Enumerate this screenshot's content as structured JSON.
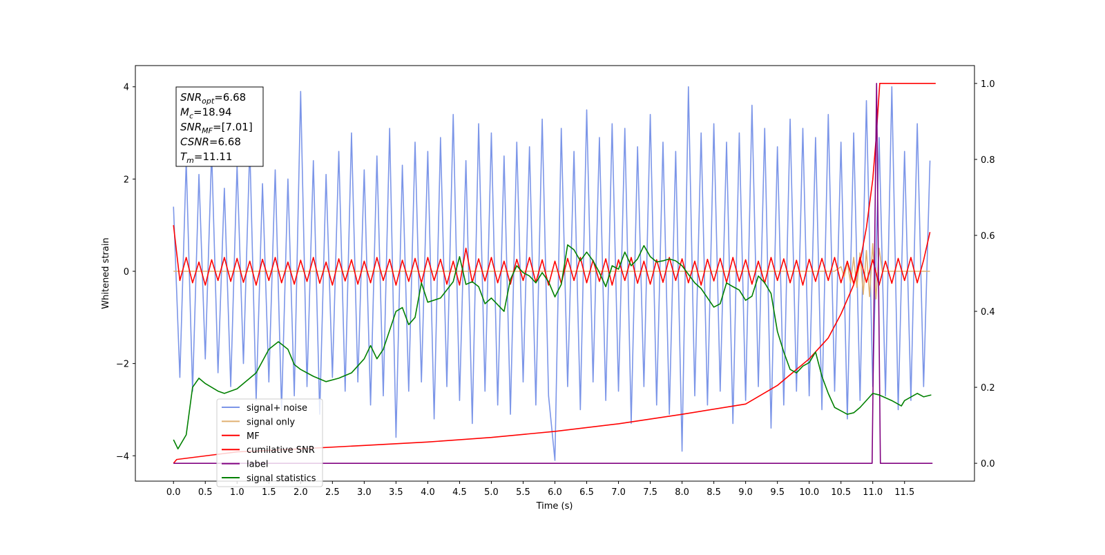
{
  "chart_data": {
    "type": "line",
    "xlabel": "Time (s)",
    "ylabel": "Whitened strain",
    "xlim": [
      -0.6,
      12.6
    ],
    "ylim": [
      -4.55,
      4.46
    ],
    "y2lim": [
      -0.047,
      1.047
    ],
    "xticks": [
      {
        "value": 0,
        "label": "0.0"
      },
      0.5,
      {
        "value": 1,
        "label": "1.0"
      },
      1.5,
      {
        "value": 2,
        "label": "2.0"
      },
      2.5,
      {
        "value": 3,
        "label": "3.0"
      },
      3.5,
      {
        "value": 4,
        "label": "4.0"
      },
      4.5,
      {
        "value": 5,
        "label": "5.0"
      },
      5.5,
      {
        "value": 6,
        "label": "6.0"
      },
      6.5,
      {
        "value": 7,
        "label": "7.0"
      },
      7.5,
      {
        "value": 8,
        "label": "8.0"
      },
      8.5,
      {
        "value": 9,
        "label": "9.0"
      },
      9.5,
      {
        "value": 10,
        "label": "10.0"
      },
      10.5,
      {
        "value": 11,
        "label": "11.0"
      },
      11.5
    ],
    "yticks": [
      {
        "value": -4,
        "label": "−4"
      },
      {
        "value": -2,
        "label": "−2"
      },
      0,
      2,
      4
    ],
    "y2ticks": [
      {
        "value": 0,
        "label": "0.0"
      },
      0.2,
      0.4,
      0.6,
      0.8,
      {
        "value": 1,
        "label": "1.0"
      }
    ],
    "legend": "lower left",
    "annotations": [
      {
        "symbol": "SNR",
        "sub": "opt",
        "text": "=6.68"
      },
      {
        "symbol": "M",
        "sub": "c",
        "text": "=18.94"
      },
      {
        "symbol": "SNR",
        "sub": "MF",
        "text": "=[7.01]"
      },
      {
        "symbol": "CSNR",
        "text": "=6.68"
      },
      {
        "symbol": "T",
        "sub": "m",
        "text": "=11.11"
      }
    ],
    "series": [
      {
        "name": "signal+ noise",
        "color": "#7b95e8",
        "x": [
          0,
          0.1,
          0.2,
          0.3,
          0.4,
          0.5,
          0.6,
          0.7,
          0.8,
          0.9,
          1,
          1.1,
          1.2,
          1.3,
          1.4,
          1.5,
          1.6,
          1.7,
          1.8,
          1.9,
          2,
          2.1,
          2.2,
          2.3,
          2.4,
          2.5,
          2.6,
          2.7,
          2.8,
          2.9,
          3,
          3.1,
          3.2,
          3.3,
          3.4,
          3.5,
          3.6,
          3.7,
          3.8,
          3.9,
          4,
          4.1,
          4.2,
          4.3,
          4.4,
          4.5,
          4.6,
          4.7,
          4.8,
          4.9,
          5,
          5.1,
          5.2,
          5.3,
          5.4,
          5.5,
          5.6,
          5.7,
          5.8,
          5.9,
          6,
          6.1,
          6.2,
          6.3,
          6.4,
          6.5,
          6.6,
          6.7,
          6.8,
          6.9,
          7,
          7.1,
          7.2,
          7.3,
          7.4,
          7.5,
          7.6,
          7.7,
          7.8,
          7.9,
          8,
          8.1,
          8.2,
          8.3,
          8.4,
          8.5,
          8.6,
          8.7,
          8.8,
          8.9,
          9,
          9.1,
          9.2,
          9.3,
          9.4,
          9.5,
          9.6,
          9.7,
          9.8,
          9.9,
          10,
          10.1,
          10.2,
          10.3,
          10.4,
          10.5,
          10.6,
          10.7,
          10.8,
          10.9,
          11,
          11.1,
          11.2,
          11.3,
          11.4,
          11.5,
          11.6,
          11.7,
          11.8,
          11.9
        ],
        "values": [
          1.4,
          -2.3,
          2.4,
          -2.6,
          2.1,
          -1.9,
          2.6,
          -2.2,
          1.8,
          -2.5,
          2.3,
          -2.0,
          2.7,
          -2.8,
          1.9,
          -2.4,
          2.2,
          -3.0,
          2.0,
          -2.7,
          3.9,
          -2.5,
          2.4,
          -3.1,
          2.1,
          -2.3,
          2.6,
          -2.6,
          3.0,
          -2.4,
          2.2,
          -2.9,
          2.5,
          -2.7,
          3.1,
          -3.6,
          2.3,
          -2.6,
          2.8,
          -2.4,
          2.6,
          -3.2,
          2.9,
          -2.5,
          3.4,
          -2.8,
          2.4,
          -3.3,
          3.2,
          -2.6,
          3.0,
          -2.9,
          2.5,
          -3.1,
          2.8,
          -2.4,
          2.7,
          -2.9,
          3.3,
          -2.7,
          -4.1,
          3.1,
          -2.5,
          2.6,
          -3.0,
          3.5,
          -2.4,
          2.9,
          -2.8,
          3.2,
          -2.6,
          3.1,
          -3.3,
          2.7,
          -2.5,
          3.4,
          -2.9,
          2.8,
          -3.1,
          2.6,
          -3.9,
          4.0,
          -2.7,
          3.0,
          -2.9,
          3.2,
          -2.6,
          2.8,
          -3.3,
          3.0,
          -2.8,
          3.6,
          -2.5,
          3.1,
          -3.4,
          2.7,
          -2.9,
          3.3,
          -2.6,
          3.1,
          -2.7,
          2.9,
          -3.0,
          3.4,
          -2.6,
          2.8,
          -3.2,
          3.0,
          -2.8,
          3.7,
          -2.5,
          2.9,
          -2.7,
          4.0,
          -3.0,
          2.6,
          -2.8,
          3.2,
          -2.5,
          2.4
        ]
      },
      {
        "name": "signal only",
        "color": "#e0b070",
        "x": [
          0,
          2,
          4,
          6,
          8,
          10,
          10.4,
          10.5,
          10.55,
          10.6,
          10.65,
          10.7,
          10.75,
          10.8,
          10.85,
          10.9,
          10.95,
          11,
          11.05,
          11.1,
          11.15,
          11.5,
          11.9
        ],
        "values": [
          0,
          0,
          0,
          0,
          0,
          0,
          0,
          0.1,
          -0.12,
          0.2,
          -0.25,
          0.3,
          -0.35,
          0.4,
          -0.5,
          0.45,
          -0.55,
          0.6,
          -0.6,
          0.5,
          0,
          0,
          0
        ]
      },
      {
        "name": "MF",
        "color": "#ff0000",
        "x": [
          0,
          0.1,
          0.2,
          0.3,
          0.4,
          0.5,
          0.6,
          0.7,
          0.8,
          0.9,
          1,
          1.1,
          1.2,
          1.3,
          1.4,
          1.5,
          1.6,
          1.7,
          1.8,
          1.9,
          2,
          2.1,
          2.2,
          2.3,
          2.4,
          2.5,
          2.6,
          2.7,
          2.8,
          2.9,
          3,
          3.1,
          3.2,
          3.3,
          3.4,
          3.5,
          3.6,
          3.7,
          3.8,
          3.9,
          4,
          4.1,
          4.2,
          4.3,
          4.4,
          4.5,
          4.6,
          4.7,
          4.8,
          4.9,
          5,
          5.1,
          5.2,
          5.3,
          5.4,
          5.5,
          5.6,
          5.7,
          5.8,
          5.9,
          6,
          6.1,
          6.2,
          6.3,
          6.4,
          6.5,
          6.6,
          6.7,
          6.8,
          6.9,
          7,
          7.1,
          7.2,
          7.3,
          7.4,
          7.5,
          7.6,
          7.7,
          7.8,
          7.9,
          8,
          8.1,
          8.2,
          8.3,
          8.4,
          8.5,
          8.6,
          8.7,
          8.8,
          8.9,
          9,
          9.1,
          9.2,
          9.3,
          9.4,
          9.5,
          9.6,
          9.7,
          9.8,
          9.9,
          10,
          10.1,
          10.2,
          10.3,
          10.4,
          10.5,
          10.6,
          10.7,
          10.8,
          10.9,
          11,
          11.1,
          11.2,
          11.3,
          11.4,
          11.5,
          11.6,
          11.7,
          11.8,
          11.9
        ],
        "values": [
          1.0,
          -0.2,
          0.3,
          -0.25,
          0.2,
          -0.3,
          0.25,
          -0.2,
          0.3,
          -0.22,
          0.28,
          -0.24,
          0.22,
          -0.3,
          0.26,
          -0.2,
          0.3,
          -0.25,
          0.2,
          -0.28,
          0.24,
          -0.22,
          0.3,
          -0.26,
          0.2,
          -0.3,
          0.27,
          -0.21,
          0.25,
          -0.28,
          0.22,
          -0.25,
          0.3,
          -0.2,
          0.26,
          -0.3,
          0.24,
          -0.22,
          0.28,
          -0.25,
          0.3,
          -0.2,
          0.26,
          -0.28,
          0.22,
          -0.3,
          0.5,
          -0.24,
          0.27,
          -0.21,
          0.3,
          -0.25,
          0.22,
          -0.28,
          0.26,
          -0.2,
          0.3,
          -0.24,
          0.25,
          -0.3,
          0.22,
          -0.26,
          0.28,
          -0.2,
          0.3,
          -0.25,
          0.24,
          -0.22,
          0.27,
          -0.3,
          0.25,
          -0.2,
          0.3,
          -0.26,
          0.22,
          -0.28,
          0.25,
          -0.24,
          0.3,
          -0.2,
          0.27,
          -0.25,
          0.22,
          -0.3,
          0.26,
          -0.21,
          0.28,
          -0.24,
          0.3,
          -0.22,
          0.25,
          -0.28,
          0.22,
          -0.26,
          0.3,
          -0.2,
          0.27,
          -0.25,
          0.24,
          -0.3,
          0.26,
          -0.22,
          0.28,
          -0.2,
          0.3,
          -0.25,
          0.22,
          -0.27,
          0.3,
          -0.24,
          0.25,
          -0.3,
          0.22,
          -0.26,
          0.28,
          -0.2,
          0.3,
          -0.25,
          0.24,
          0.85
        ]
      },
      {
        "name": "cumilative SNR",
        "color": "#ff0000",
        "axis": "y2",
        "x": [
          0,
          0.05,
          1,
          2,
          3,
          4,
          5,
          6,
          7,
          8,
          9,
          9.5,
          10,
          10.3,
          10.5,
          10.7,
          10.8,
          10.9,
          11,
          11.05,
          11.11,
          11.5,
          11.99
        ],
        "values": [
          0,
          0.01,
          0.03,
          0.038,
          0.047,
          0.056,
          0.068,
          0.084,
          0.104,
          0.129,
          0.156,
          0.205,
          0.275,
          0.33,
          0.393,
          0.47,
          0.53,
          0.62,
          0.747,
          0.85,
          1.0,
          1.0,
          1.0
        ]
      },
      {
        "name": "label",
        "color": "#800080",
        "axis": "y2",
        "x": [
          0,
          10.99,
          11.06,
          11.12,
          11.94
        ],
        "values": [
          0,
          0,
          1,
          0,
          0
        ]
      },
      {
        "name": "signal statistics",
        "color": "#008000",
        "axis": "y2",
        "x": [
          0,
          0.07,
          0.2,
          0.3,
          0.4,
          0.5,
          0.7,
          0.8,
          1.0,
          1.2,
          1.3,
          1.5,
          1.65,
          1.8,
          1.9,
          2.0,
          2.2,
          2.4,
          2.6,
          2.8,
          3.0,
          3.1,
          3.2,
          3.3,
          3.5,
          3.6,
          3.7,
          3.8,
          3.9,
          4.0,
          4.2,
          4.4,
          4.5,
          4.6,
          4.7,
          4.8,
          4.9,
          5.0,
          5.2,
          5.3,
          5.4,
          5.5,
          5.6,
          5.7,
          5.8,
          5.9,
          6.0,
          6.1,
          6.2,
          6.3,
          6.4,
          6.5,
          6.6,
          6.7,
          6.8,
          6.9,
          7.0,
          7.1,
          7.2,
          7.3,
          7.4,
          7.5,
          7.6,
          7.7,
          7.8,
          7.9,
          8.0,
          8.2,
          8.3,
          8.5,
          8.6,
          8.7,
          8.8,
          8.9,
          9.0,
          9.1,
          9.2,
          9.3,
          9.4,
          9.5,
          9.6,
          9.7,
          9.8,
          9.9,
          10.0,
          10.1,
          10.2,
          10.3,
          10.4,
          10.5,
          10.6,
          10.7,
          10.8,
          11.0,
          11.1,
          11.3,
          11.45,
          11.5,
          11.7,
          11.8,
          11.92
        ],
        "values": [
          0.062,
          0.038,
          0.075,
          0.2,
          0.224,
          0.21,
          0.19,
          0.184,
          0.196,
          0.224,
          0.238,
          0.3,
          0.32,
          0.3,
          0.26,
          0.247,
          0.229,
          0.215,
          0.224,
          0.238,
          0.275,
          0.31,
          0.275,
          0.3,
          0.4,
          0.41,
          0.365,
          0.384,
          0.475,
          0.424,
          0.435,
          0.478,
          0.544,
          0.471,
          0.478,
          0.465,
          0.42,
          0.435,
          0.4,
          0.484,
          0.52,
          0.502,
          0.493,
          0.475,
          0.502,
          0.478,
          0.438,
          0.471,
          0.575,
          0.562,
          0.533,
          0.556,
          0.533,
          0.502,
          0.465,
          0.52,
          0.511,
          0.556,
          0.52,
          0.538,
          0.573,
          0.544,
          0.53,
          0.533,
          0.538,
          0.533,
          0.52,
          0.475,
          0.46,
          0.411,
          0.42,
          0.475,
          0.465,
          0.456,
          0.429,
          0.44,
          0.493,
          0.475,
          0.447,
          0.347,
          0.293,
          0.247,
          0.238,
          0.256,
          0.265,
          0.293,
          0.229,
          0.184,
          0.147,
          0.138,
          0.129,
          0.133,
          0.147,
          0.184,
          0.18,
          0.165,
          0.151,
          0.165,
          0.184,
          0.175,
          0.18
        ]
      }
    ]
  }
}
